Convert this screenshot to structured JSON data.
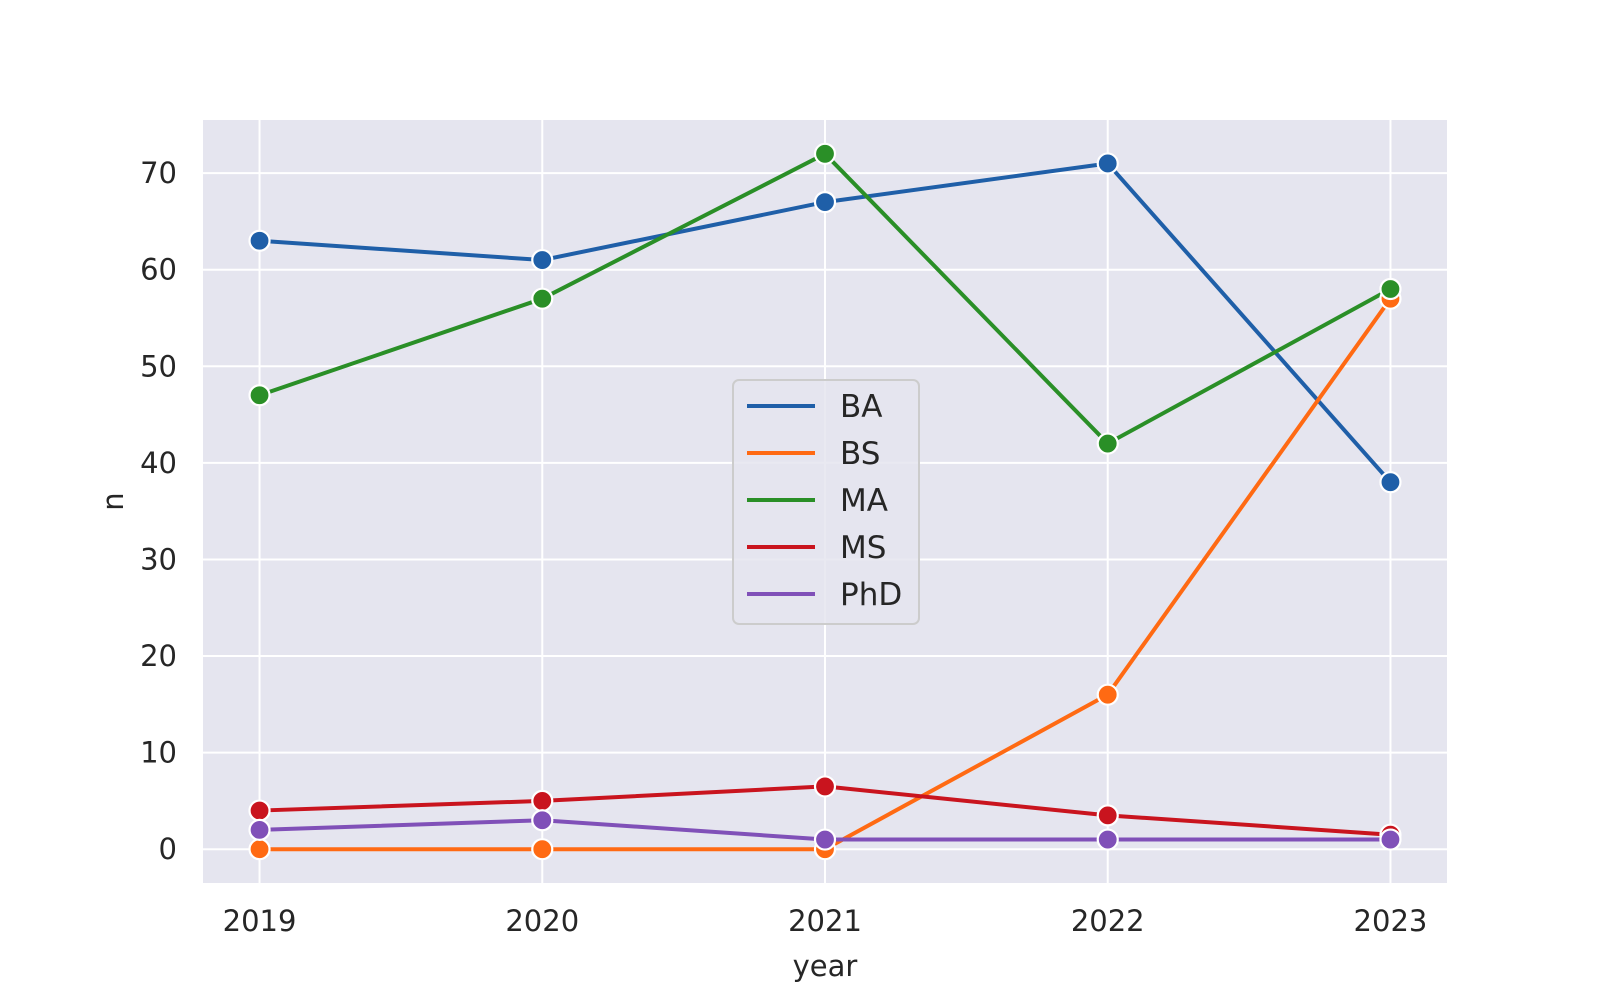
{
  "chart_data": {
    "type": "line",
    "title": "",
    "xlabel": "year",
    "ylabel": "n",
    "x": [
      2019,
      2020,
      2021,
      2022,
      2023
    ],
    "xticks": [
      "2019",
      "2020",
      "2021",
      "2022",
      "2023"
    ],
    "yticks": [
      0,
      10,
      20,
      30,
      40,
      50,
      60,
      70
    ],
    "xlim": [
      2018.8,
      2023.2
    ],
    "ylim": [
      -3.5,
      75.5
    ],
    "grid": true,
    "legend_position": "center",
    "series": [
      {
        "name": "BA",
        "color": "#1f5fa8",
        "values": [
          63,
          61,
          67,
          71,
          38
        ]
      },
      {
        "name": "BS",
        "color": "#ff6a13",
        "values": [
          0,
          0,
          0,
          16,
          57
        ]
      },
      {
        "name": "MA",
        "color": "#2a8f27",
        "values": [
          47,
          57,
          72,
          42,
          58
        ]
      },
      {
        "name": "MS",
        "color": "#c9141e",
        "values": [
          4,
          5,
          6.5,
          3.5,
          1.5
        ]
      },
      {
        "name": "PhD",
        "color": "#8050b8",
        "values": [
          2,
          3,
          1,
          1,
          1
        ]
      }
    ],
    "colors": {
      "plot_background": "#e5e5ef",
      "grid": "#ffffff"
    }
  }
}
